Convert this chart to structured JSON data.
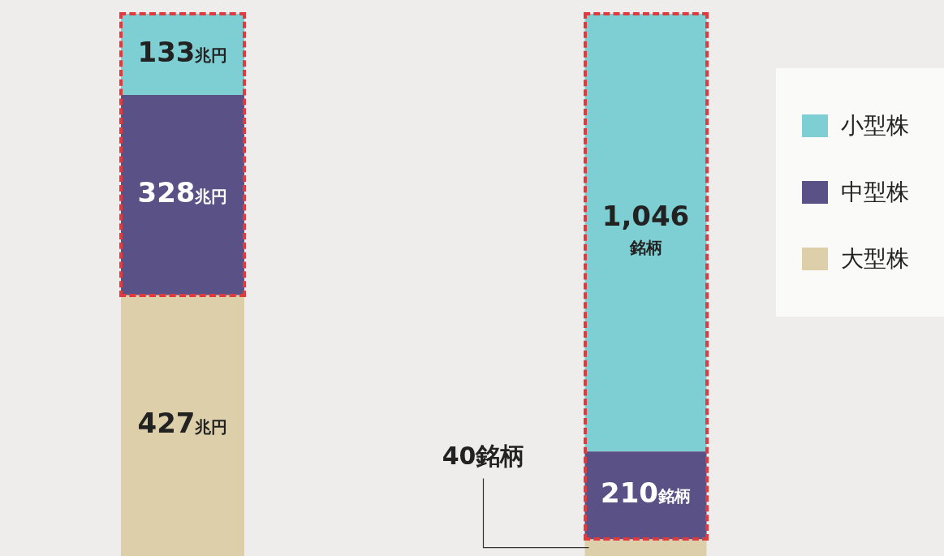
{
  "chart_data": [
    {
      "type": "bar",
      "stacked": true,
      "categories": [
        null
      ],
      "legend": false,
      "series": [
        {
          "color": "#dccfa9",
          "values": [
            427
          ],
          "value_labels": [
            "427兆円"
          ]
        },
        {
          "color": "#5a5287",
          "values": [
            328
          ],
          "value_labels": [
            "328兆円"
          ]
        },
        {
          "color": "#7ecfd3",
          "values": [
            133
          ],
          "value_labels": [
            "133兆円"
          ]
        }
      ]
    },
    {
      "type": "bar",
      "stacked": true,
      "categories": [
        null
      ],
      "legend": "right",
      "series": [
        {
          "name": "大型株",
          "color": "#dccfa9",
          "values": [
            40
          ],
          "value_labels": [
            "40銘柄"
          ]
        },
        {
          "name": "中型株",
          "color": "#5a5287",
          "values": [
            210
          ],
          "value_labels": [
            "210銘柄"
          ]
        },
        {
          "name": "小型株",
          "color": "#7ecfd3",
          "values": [
            1046
          ],
          "value_labels": [
            "1,046\n銘柄"
          ]
        }
      ]
    }
  ]
}
